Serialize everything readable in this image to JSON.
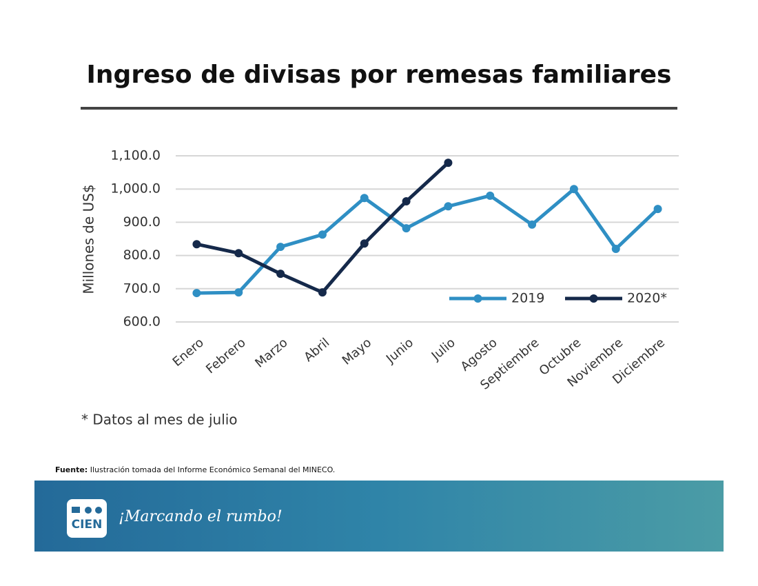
{
  "chart_data": {
    "type": "line",
    "title": "Ingreso de divisas por remesas familiares",
    "y_label": "Millones de US$",
    "categories": [
      "Enero",
      "Febrero",
      "Marzo",
      "Abril",
      "Mayo",
      "Junio",
      "Julio",
      "Agosto",
      "Septiembre",
      "Octubre",
      "Noviembre",
      "Diciembre"
    ],
    "series": [
      {
        "name": "2019",
        "color": "#2f8fc4",
        "values": [
          687,
          689,
          826,
          863,
          973,
          882,
          948,
          980,
          893,
          1000,
          820,
          940
        ]
      },
      {
        "name": "2020*",
        "color": "#15294a",
        "values": [
          834,
          807,
          745,
          689,
          836,
          963,
          1079,
          null,
          null,
          null,
          null,
          null
        ]
      }
    ],
    "ylim": [
      600,
      1100
    ],
    "yticks": [
      {
        "value": 600,
        "label": "600.0"
      },
      {
        "value": 700,
        "label": "700.0"
      },
      {
        "value": 800,
        "label": "800.0"
      },
      {
        "value": 900,
        "label": "900.0"
      },
      {
        "value": 1000,
        "label": "1,000.0"
      },
      {
        "value": 1100,
        "label": "1,100.0"
      }
    ],
    "grid": true,
    "legend": "lower right"
  },
  "footnote": "* Datos al mes de julio",
  "source": {
    "label": "Fuente:",
    "text": "Ilustración tomada del Informe Económico Semanal del MINECO."
  },
  "footer": {
    "logo": "CIEN",
    "slogan": "¡Marcando el rumbo!"
  }
}
